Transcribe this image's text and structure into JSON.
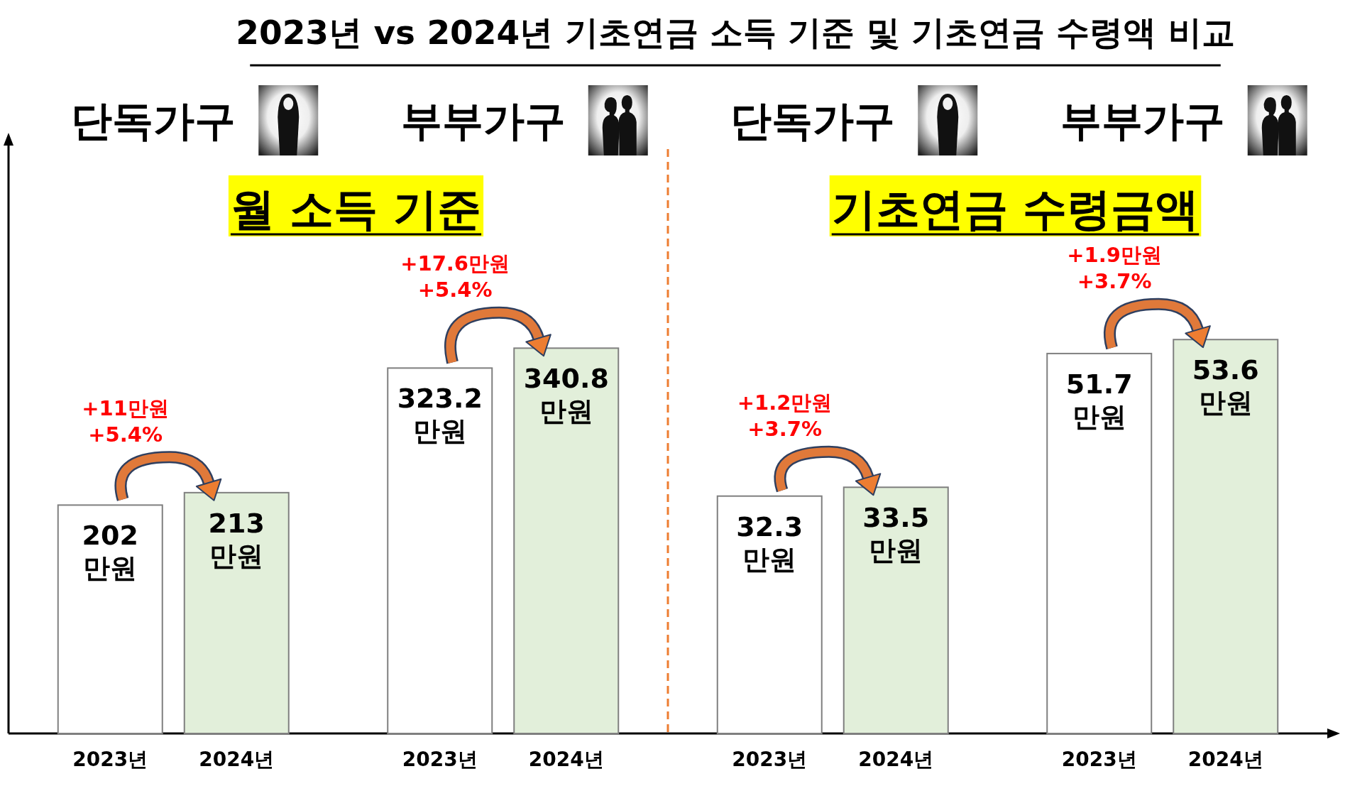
{
  "chart_data": [
    {
      "type": "bar",
      "title": "2023년 vs 2024년 기초연금 소득 기준 및 기초연금 수령액 비교",
      "subtitle": "월 소득 기준",
      "categories": [
        "단독가구",
        "부부가구"
      ],
      "series": [
        {
          "name": "2023년",
          "color": "#ffffff",
          "values": [
            202,
            323.2
          ],
          "value_labels": [
            "202 만원",
            "323.2 만원"
          ]
        },
        {
          "name": "2024년",
          "color": "#e2efda",
          "values": [
            213,
            340.8
          ],
          "value_labels": [
            "213 만원",
            "340.8 만원"
          ]
        }
      ],
      "ylim": [
        0,
        520
      ],
      "tick_labels": "x",
      "annotations": [
        "+11만원",
        "+5.4%",
        "+17.6만원",
        "+5.4%"
      ]
    },
    {
      "type": "bar",
      "subtitle": "기초연금 수령금액",
      "categories": [
        "단독가구",
        "부부가구"
      ],
      "series": [
        {
          "name": "2023년",
          "color": "#ffffff",
          "values": [
            32.3,
            51.7
          ],
          "value_labels": [
            "32.3 만원",
            "51.7 만원"
          ]
        },
        {
          "name": "2024년",
          "color": "#e2efda",
          "values": [
            33.5,
            53.6
          ],
          "value_labels": [
            "33.5 만원",
            "53.6 만원"
          ]
        }
      ],
      "ylim": [
        0,
        80
      ],
      "tick_labels": "x",
      "annotations": [
        "+1.2만원",
        "+3.7%",
        "+1.9만원",
        "+3.7%"
      ]
    }
  ]
}
